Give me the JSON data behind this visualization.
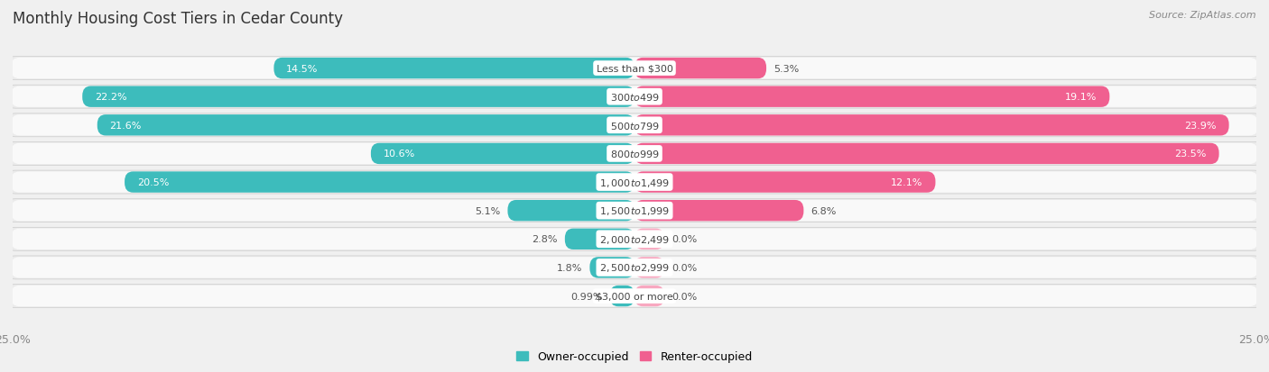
{
  "title": "Monthly Housing Cost Tiers in Cedar County",
  "source": "Source: ZipAtlas.com",
  "categories": [
    "Less than $300",
    "$300 to $499",
    "$500 to $799",
    "$800 to $999",
    "$1,000 to $1,499",
    "$1,500 to $1,999",
    "$2,000 to $2,499",
    "$2,500 to $2,999",
    "$3,000 or more"
  ],
  "owner_values": [
    14.5,
    22.2,
    21.6,
    10.6,
    20.5,
    5.1,
    2.8,
    1.8,
    0.99
  ],
  "renter_values": [
    5.3,
    19.1,
    23.9,
    23.5,
    12.1,
    6.8,
    0.0,
    0.0,
    0.0
  ],
  "renter_stub": [
    5.3,
    19.1,
    23.9,
    23.5,
    12.1,
    6.8,
    1.2,
    1.2,
    1.2
  ],
  "owner_color": "#3DBCBC",
  "owner_color_light": "#6ECECE",
  "renter_color": "#F06090",
  "renter_color_light": "#F8A8C0",
  "owner_label": "Owner-occupied",
  "renter_label": "Renter-occupied",
  "xlim": 25.0,
  "background_color": "#f0f0f0",
  "bar_row_color": "#e8e8e8",
  "bar_row_color2": "#f8f8f8",
  "title_fontsize": 12,
  "source_fontsize": 8,
  "axis_label_fontsize": 9,
  "bar_label_fontsize": 8,
  "category_fontsize": 8
}
